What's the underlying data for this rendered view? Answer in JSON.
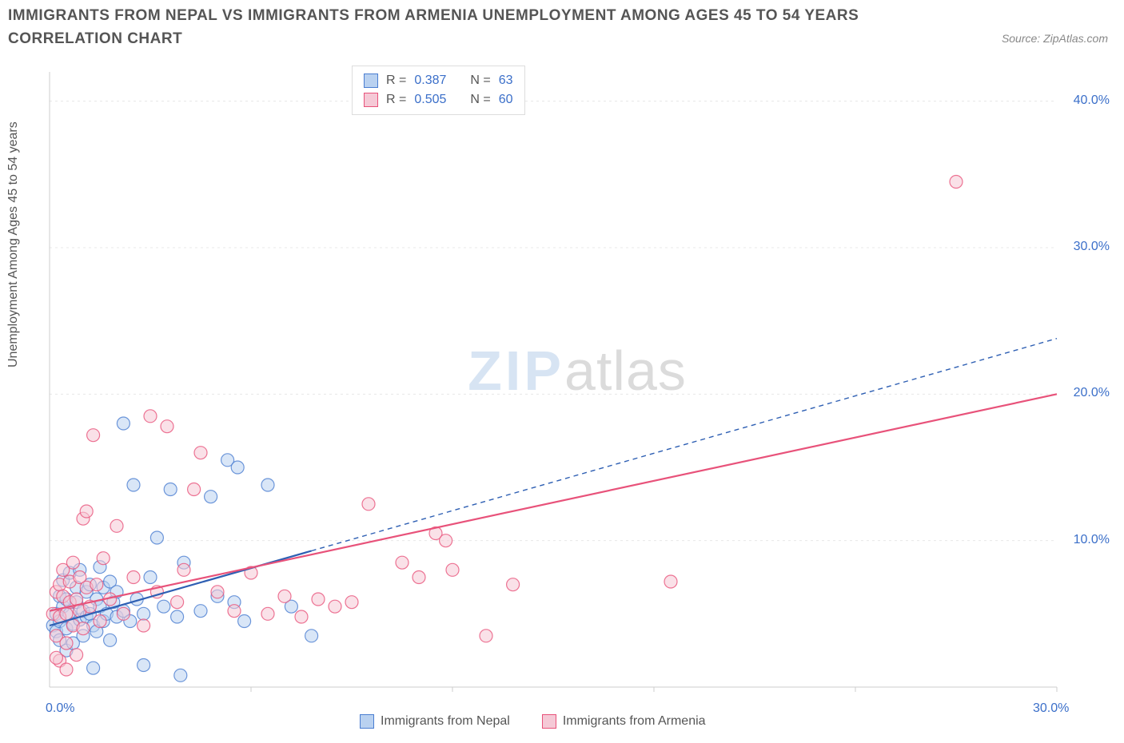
{
  "title": "IMMIGRANTS FROM NEPAL VS IMMIGRANTS FROM ARMENIA UNEMPLOYMENT AMONG AGES 45 TO 54 YEARS CORRELATION CHART",
  "source": "Source: ZipAtlas.com",
  "ylabel": "Unemployment Among Ages 45 to 54 years",
  "watermark_a": "ZIP",
  "watermark_b": "atlas",
  "chart": {
    "type": "scatter",
    "background_color": "#ffffff",
    "grid_color": "#e8e8e8",
    "axis_color": "#cccccc",
    "tick_label_color": "#3b6fc9",
    "axis_title_color": "#555555",
    "xlim": [
      0,
      30
    ],
    "ylim": [
      0,
      42
    ],
    "xticks": [
      0,
      30
    ],
    "xtick_labels": [
      "0.0%",
      "30.0%"
    ],
    "yticks": [
      10,
      20,
      30,
      40
    ],
    "ytick_labels": [
      "10.0%",
      "20.0%",
      "30.0%",
      "40.0%"
    ],
    "gridlines_y": [
      10,
      20,
      30,
      40
    ],
    "gridlines_x": [
      6,
      12,
      18,
      24,
      30
    ],
    "marker_radius": 8,
    "marker_stroke_width": 1.2,
    "trend_solid_width": 2.2,
    "trend_dash_pattern": "6,5",
    "series": [
      {
        "key": "nepal",
        "label": "Immigrants from Nepal",
        "fill": "#b9d1f0",
        "stroke": "#4a7dd1",
        "trend_color": "#2e5fb3",
        "R": "0.387",
        "N": "63",
        "trend_solid": {
          "x1": 0.0,
          "y1": 4.2,
          "x2": 7.8,
          "y2": 9.3
        },
        "trend_dash": {
          "x1": 7.8,
          "y1": 9.3,
          "x2": 30.0,
          "y2": 23.8
        },
        "points": [
          [
            0.1,
            4.2
          ],
          [
            0.2,
            3.8
          ],
          [
            0.2,
            5.0
          ],
          [
            0.3,
            4.5
          ],
          [
            0.3,
            6.2
          ],
          [
            0.3,
            3.2
          ],
          [
            0.4,
            5.5
          ],
          [
            0.4,
            7.3
          ],
          [
            0.5,
            4.0
          ],
          [
            0.5,
            2.5
          ],
          [
            0.5,
            6.0
          ],
          [
            0.6,
            5.0
          ],
          [
            0.6,
            7.8
          ],
          [
            0.7,
            4.3
          ],
          [
            0.7,
            3.0
          ],
          [
            0.8,
            5.8
          ],
          [
            0.8,
            6.8
          ],
          [
            0.9,
            4.6
          ],
          [
            0.9,
            8.0
          ],
          [
            1.0,
            5.2
          ],
          [
            1.0,
            3.5
          ],
          [
            1.1,
            6.5
          ],
          [
            1.1,
            4.8
          ],
          [
            1.2,
            7.0
          ],
          [
            1.2,
            5.0
          ],
          [
            1.3,
            4.2
          ],
          [
            1.3,
            1.3
          ],
          [
            1.4,
            6.0
          ],
          [
            1.4,
            3.8
          ],
          [
            1.5,
            5.5
          ],
          [
            1.5,
            8.2
          ],
          [
            1.6,
            4.5
          ],
          [
            1.6,
            6.8
          ],
          [
            1.7,
            5.0
          ],
          [
            1.8,
            3.2
          ],
          [
            1.8,
            7.2
          ],
          [
            1.9,
            5.8
          ],
          [
            2.0,
            4.8
          ],
          [
            2.0,
            6.5
          ],
          [
            2.2,
            5.2
          ],
          [
            2.2,
            18.0
          ],
          [
            2.4,
            4.5
          ],
          [
            2.5,
            13.8
          ],
          [
            2.6,
            6.0
          ],
          [
            2.8,
            5.0
          ],
          [
            2.8,
            1.5
          ],
          [
            3.0,
            7.5
          ],
          [
            3.2,
            10.2
          ],
          [
            3.4,
            5.5
          ],
          [
            3.6,
            13.5
          ],
          [
            3.8,
            4.8
          ],
          [
            3.9,
            0.8
          ],
          [
            4.0,
            8.5
          ],
          [
            4.5,
            5.2
          ],
          [
            4.8,
            13.0
          ],
          [
            5.0,
            6.2
          ],
          [
            5.3,
            15.5
          ],
          [
            5.5,
            5.8
          ],
          [
            5.6,
            15.0
          ],
          [
            5.8,
            4.5
          ],
          [
            6.5,
            13.8
          ],
          [
            7.2,
            5.5
          ],
          [
            7.8,
            3.5
          ]
        ]
      },
      {
        "key": "armenia",
        "label": "Immigrants from Armenia",
        "fill": "#f5c9d6",
        "stroke": "#e8527a",
        "trend_color": "#e8527a",
        "R": "0.505",
        "N": "60",
        "trend_solid": {
          "x1": 0.0,
          "y1": 5.2,
          "x2": 30.0,
          "y2": 20.0
        },
        "trend_dash": null,
        "points": [
          [
            0.1,
            5.0
          ],
          [
            0.2,
            6.5
          ],
          [
            0.2,
            3.5
          ],
          [
            0.3,
            7.0
          ],
          [
            0.3,
            4.8
          ],
          [
            0.3,
            1.8
          ],
          [
            0.4,
            6.2
          ],
          [
            0.4,
            8.0
          ],
          [
            0.5,
            5.0
          ],
          [
            0.5,
            3.0
          ],
          [
            0.6,
            7.2
          ],
          [
            0.6,
            5.8
          ],
          [
            0.7,
            4.2
          ],
          [
            0.7,
            8.5
          ],
          [
            0.8,
            6.0
          ],
          [
            0.8,
            2.2
          ],
          [
            0.9,
            7.5
          ],
          [
            0.9,
            5.2
          ],
          [
            1.0,
            11.5
          ],
          [
            1.0,
            4.0
          ],
          [
            1.1,
            6.8
          ],
          [
            1.1,
            12.0
          ],
          [
            1.2,
            5.5
          ],
          [
            1.3,
            17.2
          ],
          [
            1.4,
            7.0
          ],
          [
            1.5,
            4.5
          ],
          [
            1.6,
            8.8
          ],
          [
            1.8,
            6.0
          ],
          [
            2.0,
            11.0
          ],
          [
            2.2,
            5.0
          ],
          [
            2.5,
            7.5
          ],
          [
            2.8,
            4.2
          ],
          [
            3.0,
            18.5
          ],
          [
            3.2,
            6.5
          ],
          [
            3.5,
            17.8
          ],
          [
            3.8,
            5.8
          ],
          [
            4.0,
            8.0
          ],
          [
            4.3,
            13.5
          ],
          [
            4.5,
            16.0
          ],
          [
            5.0,
            6.5
          ],
          [
            5.5,
            5.2
          ],
          [
            6.0,
            7.8
          ],
          [
            6.5,
            5.0
          ],
          [
            7.0,
            6.2
          ],
          [
            7.5,
            4.8
          ],
          [
            8.0,
            6.0
          ],
          [
            8.5,
            5.5
          ],
          [
            9.0,
            5.8
          ],
          [
            9.5,
            12.5
          ],
          [
            10.5,
            8.5
          ],
          [
            11.0,
            7.5
          ],
          [
            11.5,
            10.5
          ],
          [
            11.8,
            10.0
          ],
          [
            12.0,
            8.0
          ],
          [
            13.0,
            3.5
          ],
          [
            13.8,
            7.0
          ],
          [
            18.5,
            7.2
          ],
          [
            27.0,
            34.5
          ],
          [
            0.2,
            2.0
          ],
          [
            0.5,
            1.2
          ]
        ]
      }
    ],
    "legend_top": {
      "R_label": "R =",
      "N_label": "N ="
    }
  }
}
